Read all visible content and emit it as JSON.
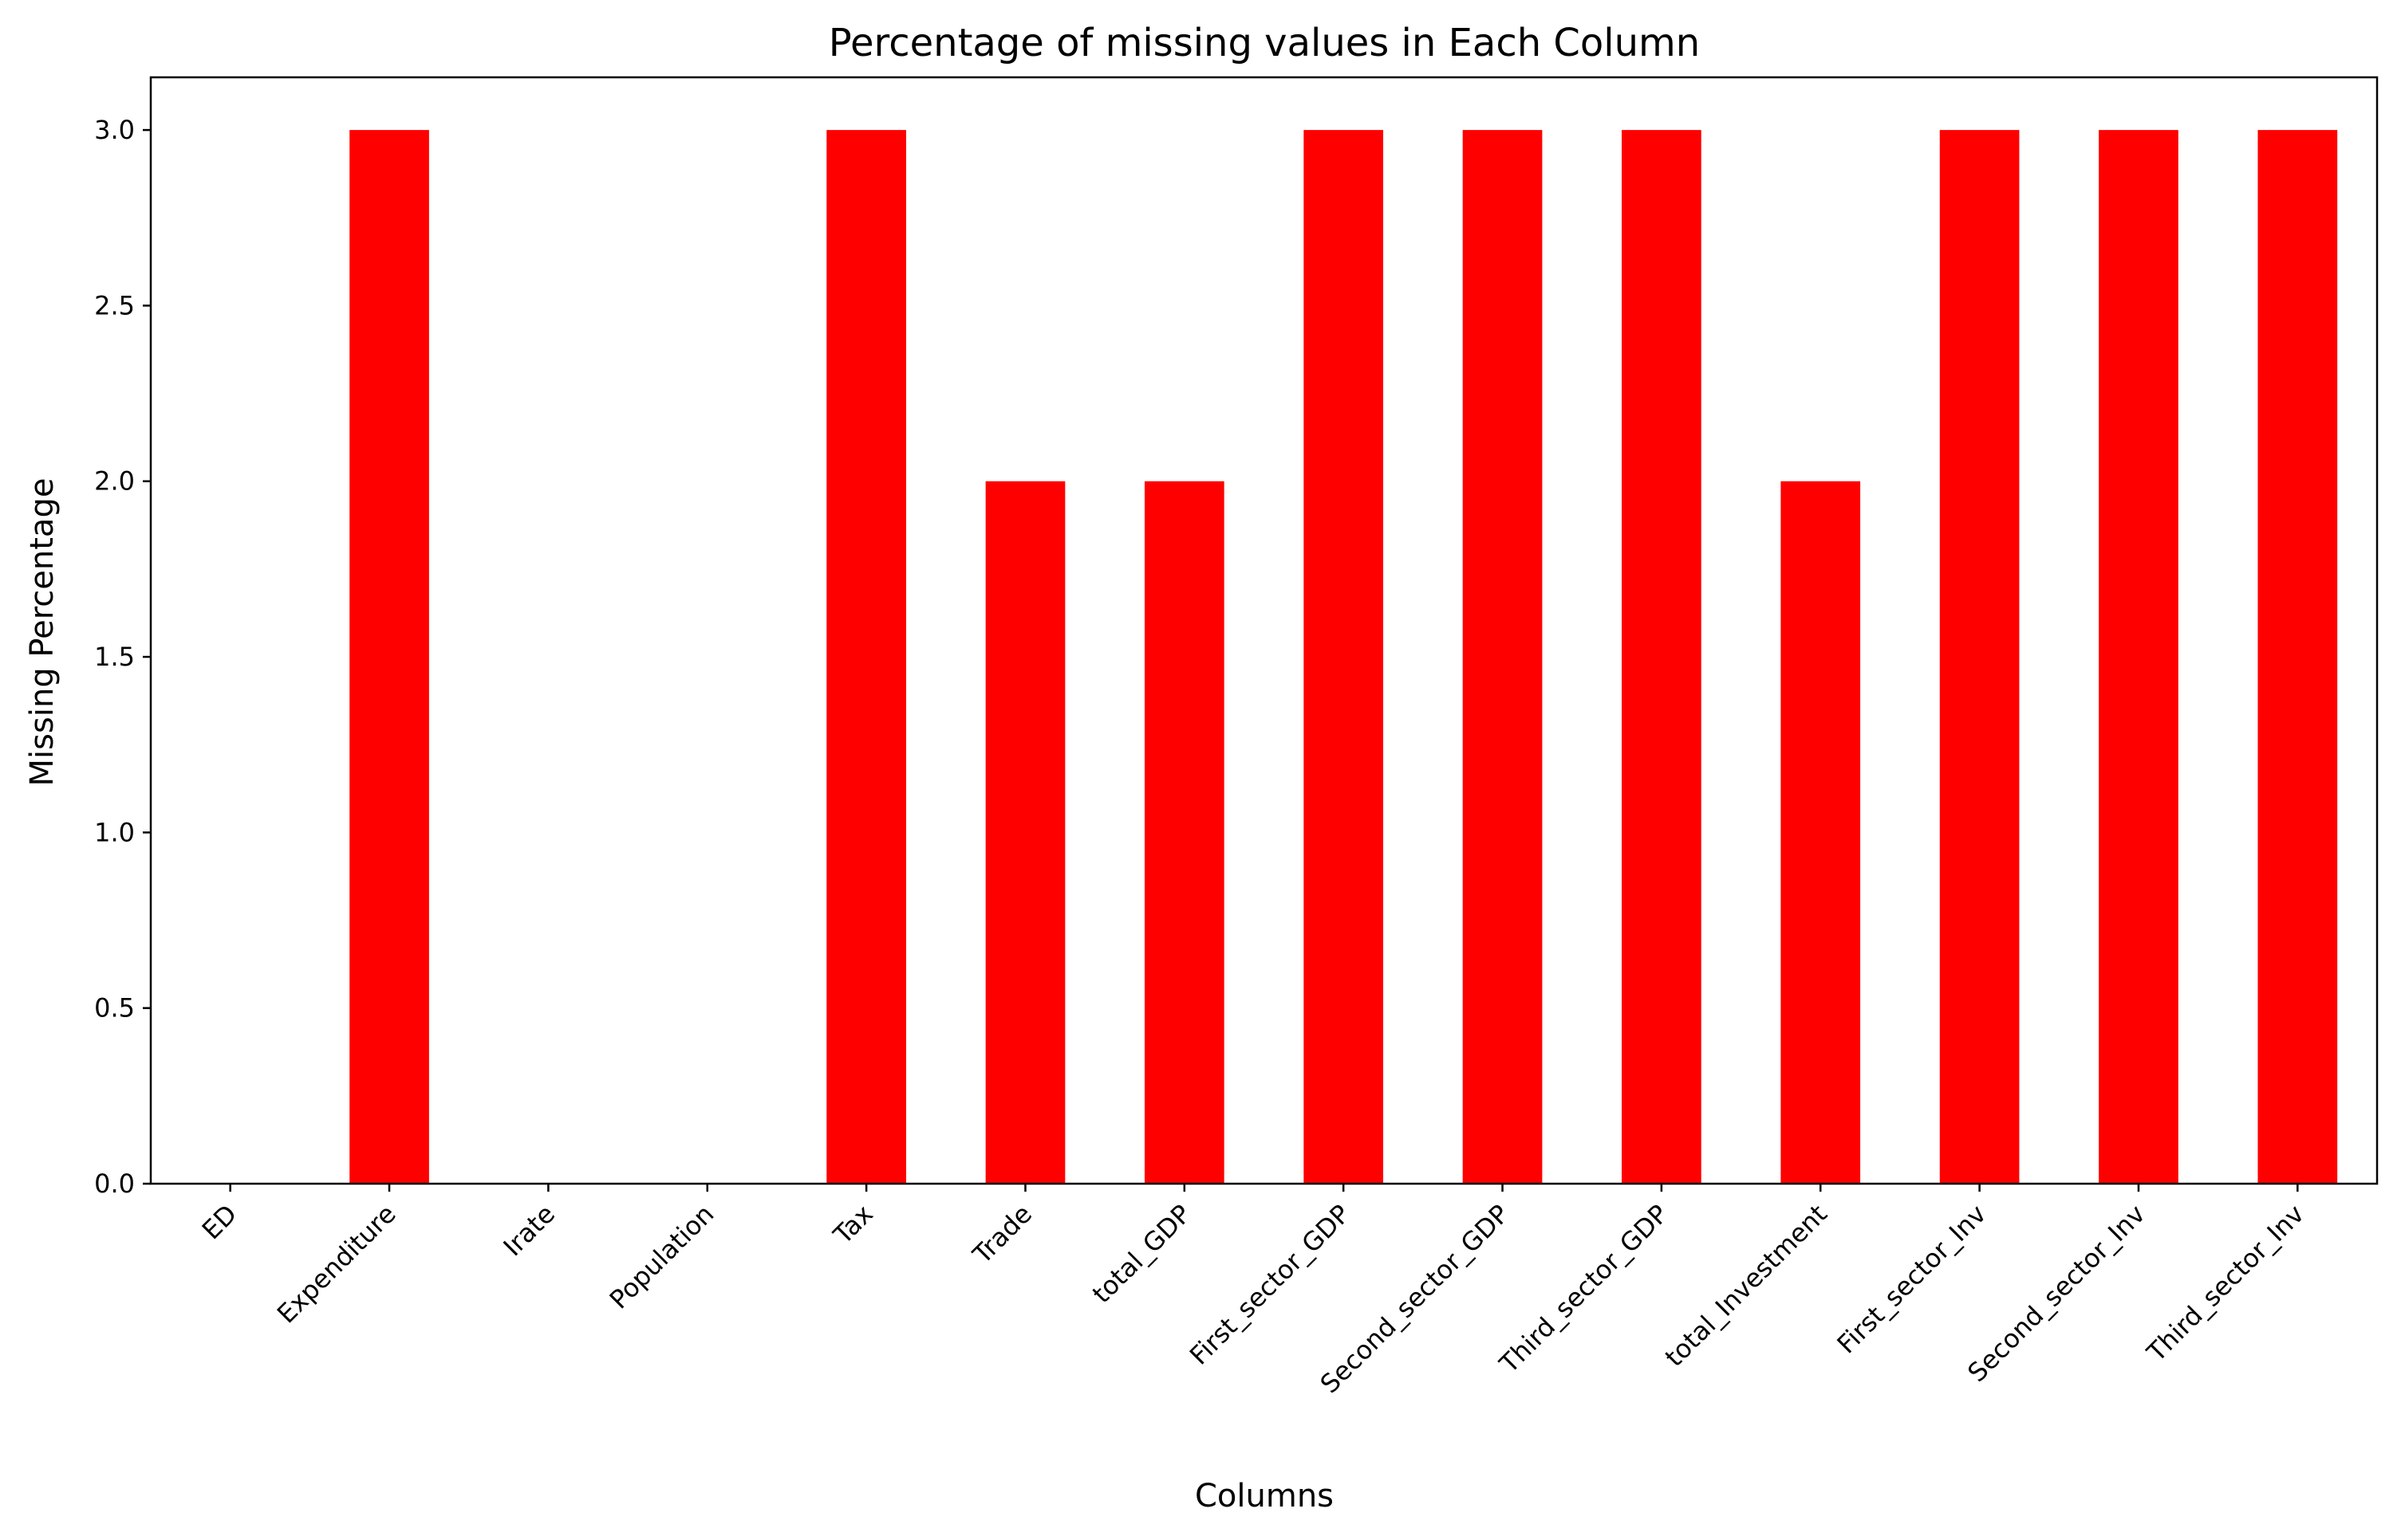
{
  "chart_data": {
    "type": "bar",
    "title": "Percentage of missing values in Each Column",
    "xlabel": "Columns",
    "ylabel": "Missing Percentage",
    "categories": [
      "ED",
      "Expenditure",
      "Irate",
      "Population",
      "Tax",
      "Trade",
      "total_GDP",
      "First_sector_GDP",
      "Second_sector_GDP",
      "Third_sector_GDP",
      "total_Investment",
      "First_sector_Inv",
      "Second_sector_Inv",
      "Third_sector_Inv"
    ],
    "values": [
      0,
      3,
      0,
      0,
      3,
      2,
      2,
      3,
      3,
      3,
      2,
      3,
      3,
      3
    ],
    "ylim": [
      0,
      3.15
    ],
    "yticks": [
      0.0,
      0.5,
      1.0,
      1.5,
      2.0,
      2.5,
      3.0
    ],
    "ytick_labels": [
      "0.0",
      "0.5",
      "1.0",
      "1.5",
      "2.0",
      "2.5",
      "3.0"
    ],
    "bar_color": "#ff0000",
    "grid": false,
    "legend": "none"
  }
}
